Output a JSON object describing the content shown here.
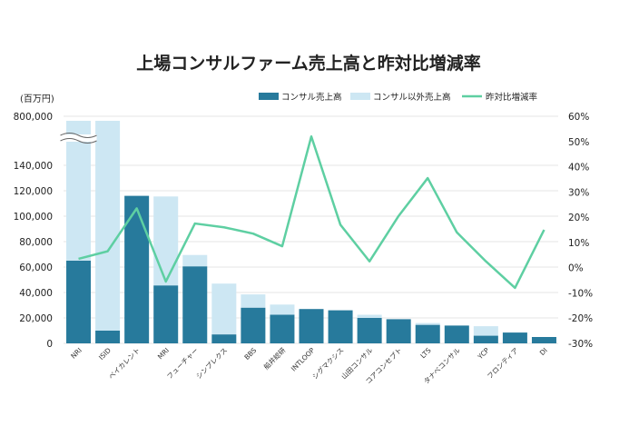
{
  "chart_data": {
    "type": "bar",
    "title": "上場コンサルファーム売上高と昨対比増減率",
    "ylabel": "(百万円)",
    "categories": [
      "NRI",
      "ISID",
      "ベイカレント",
      "MRI",
      "フューチャー",
      "シンプレクス",
      "BBS",
      "船井総研",
      "INTLOOP",
      "シグマクシス",
      "山田コンサル",
      "コアコンセプト",
      "LTS",
      "タナベコンサル",
      "YCP",
      "フロンティア",
      "DI"
    ],
    "series": [
      {
        "name": "コンサル売上高",
        "values": [
          65000,
          10000,
          116000,
          45500,
          60500,
          7000,
          28000,
          22500,
          27000,
          26000,
          20000,
          19000,
          14500,
          14000,
          6000,
          8500,
          5000
        ]
      },
      {
        "name": "コンサル以外売上高",
        "values": [
          700000,
          143000,
          0,
          70000,
          9000,
          40000,
          10500,
          8000,
          0,
          0,
          2500,
          0,
          1500,
          0,
          7500,
          0,
          0
        ]
      },
      {
        "name": "昨対比増減率",
        "values": [
          3.5,
          6.5,
          23.5,
          -5.5,
          17.5,
          16,
          13.5,
          8.5,
          52,
          17,
          2.5,
          20.5,
          35.5,
          14,
          2.5,
          -8,
          15
        ]
      }
    ],
    "y_left": {
      "ticks": [
        "0",
        "20,000",
        "40,000",
        "60,000",
        "80,000",
        "100,000",
        "120,000",
        "140,000",
        "800,000"
      ],
      "ylim": [
        0,
        160000
      ],
      "break": true,
      "break_top": 800000
    },
    "y_right": {
      "ticks": [
        "-30%",
        "-20%",
        "-10%",
        "0%",
        "10%",
        "20%",
        "30%",
        "40%",
        "50%",
        "60%"
      ],
      "ylim": [
        -30,
        60
      ]
    },
    "colors": {
      "consulting": "#277a9c",
      "other": "#cde7f3",
      "line": "#5ecfa2",
      "grid": "#e6e6e6"
    },
    "legend_position": "top-right",
    "grid": true
  }
}
